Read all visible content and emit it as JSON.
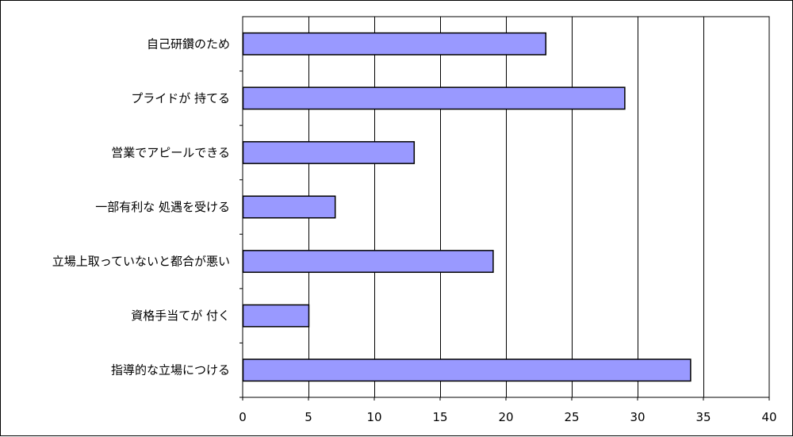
{
  "chart_data": {
    "type": "bar",
    "orientation": "horizontal",
    "categories": [
      "自己研鑽のため",
      "プライドが 持てる",
      "営業でアピールできる",
      "一部有利な 処遇を受ける",
      "立場上取っていないと都合が悪い",
      "資格手当てが 付く",
      "指導的な立場につける"
    ],
    "values": [
      23,
      29,
      13,
      7,
      19,
      5,
      34
    ],
    "xlim": [
      0,
      40
    ],
    "x_ticks": [
      0,
      5,
      10,
      15,
      20,
      25,
      30,
      35,
      40
    ],
    "grid": true,
    "legend": "none",
    "title": "",
    "xlabel": "",
    "ylabel": "",
    "colors": {
      "bar_fill": "#9999ff",
      "bar_stroke": "#000000",
      "grid": "#000000",
      "plot_border": "#000000"
    }
  }
}
